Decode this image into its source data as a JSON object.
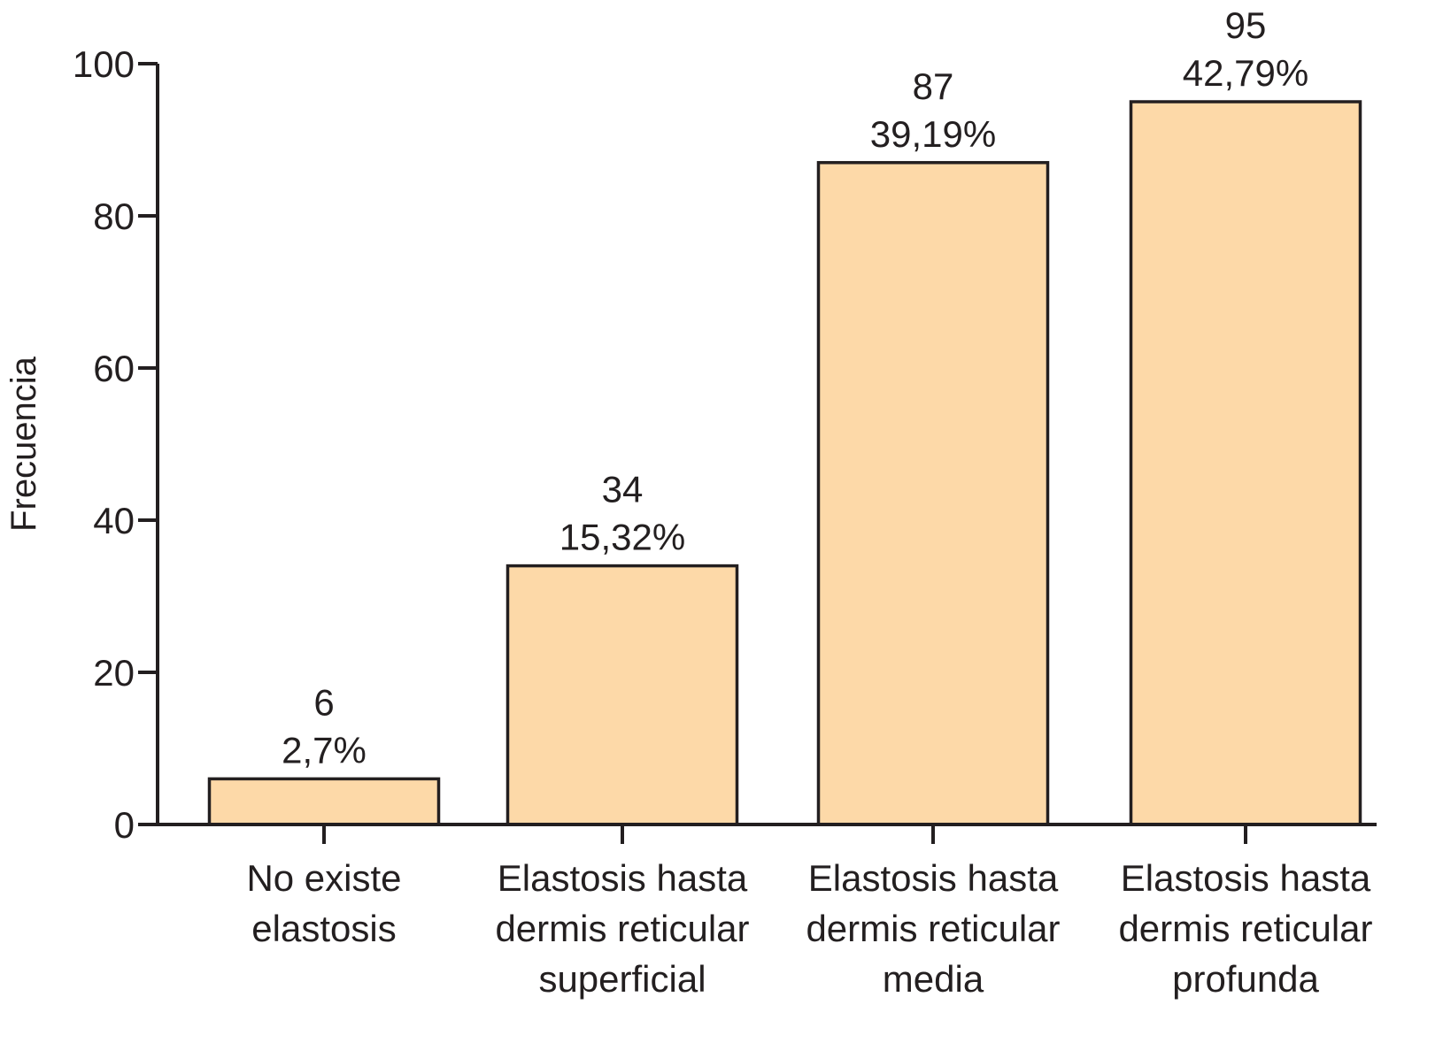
{
  "chart_data": {
    "type": "bar",
    "title": "",
    "xlabel": "",
    "ylabel": "Frecuencia",
    "ylim": [
      0,
      100
    ],
    "yticks": [
      0,
      20,
      40,
      60,
      80,
      100
    ],
    "grid": false,
    "legend": null,
    "categories": [
      [
        "No existe",
        "elastosis"
      ],
      [
        "Elastosis hasta",
        "dermis reticular",
        "superficial"
      ],
      [
        "Elastosis hasta",
        "dermis reticular",
        "media"
      ],
      [
        "Elastosis hasta",
        "dermis reticular",
        "profunda"
      ]
    ],
    "values": [
      6,
      34,
      87,
      95
    ],
    "value_labels": [
      "6",
      "34",
      "87",
      "95"
    ],
    "percent_labels": [
      "2,7%",
      "15,32%",
      "39,19%",
      "42,79%"
    ],
    "colors": {
      "bar_fill": "#FDD9A8",
      "bar_stroke": "#231f20",
      "axis": "#231f20",
      "text": "#231f20"
    }
  }
}
